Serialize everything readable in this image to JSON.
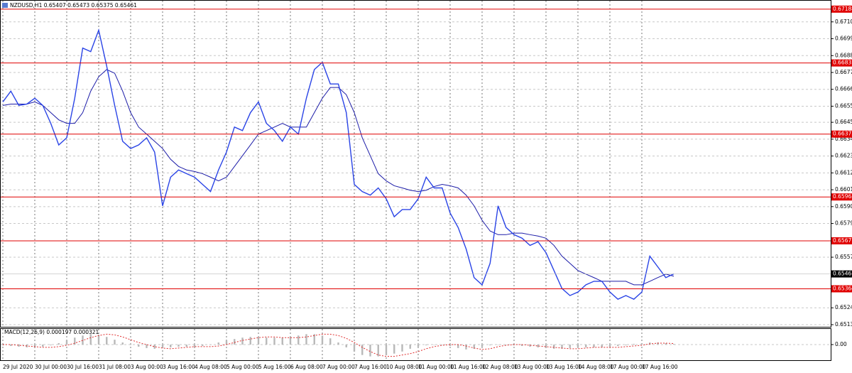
{
  "chart_data": [
    {
      "type": "line",
      "title": "NZDUSD,H1  0.65407 0.65473 0.65375 0.65461",
      "categories": [
        "29 Jul 2020",
        null,
        null,
        null,
        "30 Jul 00:00",
        null,
        null,
        null,
        "30 Jul 16:00",
        null,
        null,
        null,
        "31 Jul 08:00",
        null,
        null,
        null,
        "3 Aug 00:00",
        null,
        null,
        null,
        "3 Aug 16:00",
        null,
        null,
        null,
        "4 Aug 08:00",
        null,
        null,
        null,
        "5 Aug 00:00",
        null,
        null,
        null,
        "5 Aug 16:00",
        null,
        null,
        null,
        "6 Aug 08:00",
        null,
        null,
        null,
        "7 Aug 00:00",
        null,
        null,
        null,
        "7 Aug 16:00",
        null,
        null,
        null,
        "10 Aug 08:00",
        null,
        null,
        null,
        "11 Aug 00:00",
        null,
        null,
        null,
        "11 Aug 16:00",
        null,
        null,
        null,
        "12 Aug 08:00",
        null,
        null,
        null,
        "13 Aug 00:00",
        null,
        null,
        null,
        "13 Aug 16:00",
        null,
        null,
        null,
        "14 Aug 08:00",
        null,
        null,
        null,
        "17 Aug 00:00",
        null,
        null,
        null,
        "17 Aug 16:00",
        null,
        null,
        null,
        null
      ],
      "series": [
        {
          "color": "#2a44e6",
          "values": [
            0.66583,
            0.66653,
            0.6656,
            0.66569,
            0.66607,
            0.6656,
            0.66443,
            0.66302,
            0.66349,
            0.66607,
            0.66934,
            0.66911,
            0.67051,
            0.66817,
            0.6656,
            0.66326,
            0.66279,
            0.66302,
            0.66349,
            0.66256,
            0.65905,
            0.66092,
            0.66139,
            0.66115,
            0.66092,
            0.66045,
            0.65998,
            0.66139,
            0.66256,
            0.66419,
            0.66396,
            0.66513,
            0.66583,
            0.66443,
            0.66396,
            0.66326,
            0.66419,
            0.66373,
            0.66607,
            0.66794,
            0.66841,
            0.667,
            0.667,
            0.66513,
            0.66045,
            0.65998,
            0.65975,
            0.66022,
            0.65951,
            0.65834,
            0.65881,
            0.65881,
            0.65951,
            0.66092,
            0.66022,
            0.66022,
            0.65858,
            0.65764,
            0.65624,
            0.65437,
            0.6539,
            0.6553,
            0.65905,
            0.65764,
            0.65717,
            0.65694,
            0.65647,
            0.65671,
            0.656,
            0.65483,
            0.65366,
            0.6532,
            0.65343,
            0.6539,
            0.65413,
            0.65413,
            0.65343,
            0.65296,
            0.6532,
            0.65296,
            0.65343,
            0.65577,
            0.65507,
            0.65437,
            0.65461
          ]
        },
        {
          "color": "#1c1ca8",
          "values": [
            0.6656,
            0.66569,
            0.66569,
            0.66569,
            0.66583,
            0.6656,
            0.66513,
            0.66466,
            0.66443,
            0.66443,
            0.66513,
            0.66653,
            0.66747,
            0.66794,
            0.6677,
            0.66653,
            0.66513,
            0.66419,
            0.66373,
            0.66326,
            0.66279,
            0.66209,
            0.66162,
            0.66139,
            0.66129,
            0.66115,
            0.66092,
            0.66068,
            0.66092,
            0.66162,
            0.66232,
            0.66302,
            0.66373,
            0.66396,
            0.66419,
            0.66443,
            0.66419,
            0.66419,
            0.66419,
            0.66513,
            0.66607,
            0.66677,
            0.66677,
            0.6663,
            0.66513,
            0.66349,
            0.66232,
            0.66115,
            0.66068,
            0.66036,
            0.66022,
            0.66007,
            0.65998,
            0.66007,
            0.66031,
            0.66045,
            0.66036,
            0.66022,
            0.65975,
            0.65905,
            0.65811,
            0.65741,
            0.65717,
            0.65717,
            0.65727,
            0.65727,
            0.65717,
            0.65708,
            0.65694,
            0.65647,
            0.65577,
            0.6553,
            0.65483,
            0.6546,
            0.65437,
            0.65413,
            0.65413,
            0.65413,
            0.65413,
            0.6539,
            0.6539,
            0.65413,
            0.65437,
            0.6546,
            0.65446
          ]
        }
      ],
      "levels": [
        0.67188,
        0.66837,
        0.66373,
        0.65963,
        0.65677,
        0.65364
      ],
      "level_color": "#e00000",
      "last_price": 0.65461,
      "ylim": [
        0.65116,
        0.67243
      ],
      "yticks": [
        0.67105,
        0.66995,
        0.66885,
        0.66775,
        0.66665,
        0.66555,
        {
          "value": 0.6645,
          "label": "0.66450"
        },
        {
          "value": 0.6634,
          "label": "0.66340"
        },
        {
          "value": 0.6623,
          "label": "0.66230"
        },
        {
          "value": 0.6612,
          "label": "0.66120"
        },
        {
          "value": 0.6601,
          "label": "0.66010"
        },
        {
          "value": 0.659,
          "label": "0.65900"
        },
        {
          "value": 0.6579,
          "label": "0.65790"
        },
        {
          "value": 0.6557,
          "label": "0.65570"
        },
        {
          "value": 0.6524,
          "label": "0.65240"
        },
        {
          "value": 0.6513,
          "label": "0.65130"
        }
      ],
      "grid": true
    },
    {
      "type": "bar",
      "title": "MACD(12,26,9) 0.000197 0.000321",
      "color": "#b8b8b8",
      "values": [
        -0.0002,
        -0.0004,
        -0.0006,
        -0.0008,
        -0.0008,
        -0.0006,
        -0.0002,
        0.0004,
        0.0012,
        0.002,
        0.0026,
        0.003,
        0.0028,
        0.0022,
        0.0014,
        0.0006,
        0,
        -0.0006,
        -0.001,
        -0.0012,
        -0.001,
        -0.0008,
        -0.0006,
        -0.0006,
        -0.0006,
        -0.0004,
        0,
        0.0006,
        0.0012,
        0.0016,
        0.002,
        0.0022,
        0.0022,
        0.002,
        0.002,
        0.002,
        0.0022,
        0.0026,
        0.003,
        0.003,
        0.0026,
        0.0018,
        0.0006,
        -0.0008,
        -0.002,
        -0.003,
        -0.0034,
        -0.0034,
        -0.003,
        -0.0026,
        -0.002,
        -0.0012,
        -0.0006,
        -0.0002,
        0,
        0,
        -0.0004,
        -0.001,
        -0.0014,
        -0.0012,
        -0.0006,
        -0.0002,
        0,
        0,
        -0.0002,
        -0.0004,
        -0.0006,
        -0.0008,
        -0.001,
        -0.0012,
        -0.0012,
        -0.001,
        -0.0008,
        -0.0008,
        -0.0008,
        -0.0008,
        -0.0006,
        -0.0004,
        -0.0002,
        0.0002,
        0.0004,
        0.0006,
        0.0006,
        0.0004,
        0.0002
      ],
      "series": [
        {
          "color": "#e03030",
          "dash": true,
          "values": [
            0,
            0,
            -0.0002,
            -0.0004,
            -0.0006,
            -0.0008,
            -0.0008,
            -0.0006,
            -0.0002,
            0.0004,
            0.0012,
            0.002,
            0.0026,
            0.003,
            0.0028,
            0.0022,
            0.0014,
            0.0006,
            0,
            -0.0006,
            -0.001,
            -0.0012,
            -0.001,
            -0.0008,
            -0.0006,
            -0.0006,
            -0.0006,
            -0.0004,
            0,
            0.0006,
            0.0012,
            0.0016,
            0.002,
            0.0022,
            0.0022,
            0.002,
            0.002,
            0.002,
            0.0022,
            0.0026,
            0.003,
            0.003,
            0.0026,
            0.0018,
            0.0006,
            -0.0008,
            -0.002,
            -0.003,
            -0.0034,
            -0.0034,
            -0.003,
            -0.0026,
            -0.002,
            -0.0012,
            -0.0006,
            -0.0002,
            0,
            0,
            -0.0004,
            -0.001,
            -0.0014,
            -0.0012,
            -0.0006,
            -0.0002,
            0,
            0,
            -0.0002,
            -0.0004,
            -0.0006,
            -0.0008,
            -0.001,
            -0.0012,
            -0.0012,
            -0.001,
            -0.0008,
            -0.0008,
            -0.0008,
            -0.0008,
            -0.0006,
            -0.0004,
            -0.0002,
            0.0002,
            0.0004,
            0.0004,
            0.0003
          ]
        }
      ],
      "ylim": [
        -0.0045,
        0.0045
      ],
      "yticks": [
        {
          "value": 0,
          "label": "0.00"
        }
      ]
    }
  ]
}
